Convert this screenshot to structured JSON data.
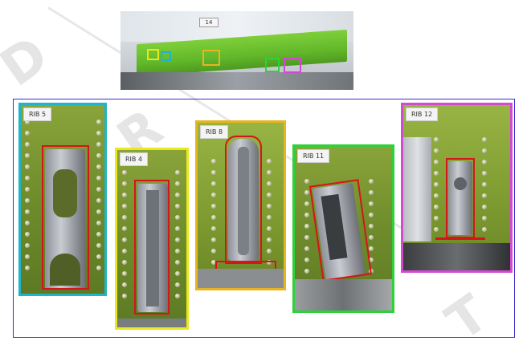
{
  "watermark": {
    "text": "DRAFT"
  },
  "overview": {
    "sign_label": "14"
  },
  "panels": [
    {
      "id": "rib5",
      "label": "RIB 5",
      "border_color": "#1fb4c8"
    },
    {
      "id": "rib4",
      "label": "RIB 4",
      "border_color": "#e8e81a"
    },
    {
      "id": "rib8",
      "label": "RIB 8",
      "border_color": "#e6b520"
    },
    {
      "id": "rib11",
      "label": "RIB 11",
      "border_color": "#2ed13a"
    },
    {
      "id": "rib12",
      "label": "RIB 12",
      "border_color": "#d24ad2"
    }
  ],
  "colors": {
    "frame": "#3a2bd0",
    "highlight": "#d4151b"
  }
}
